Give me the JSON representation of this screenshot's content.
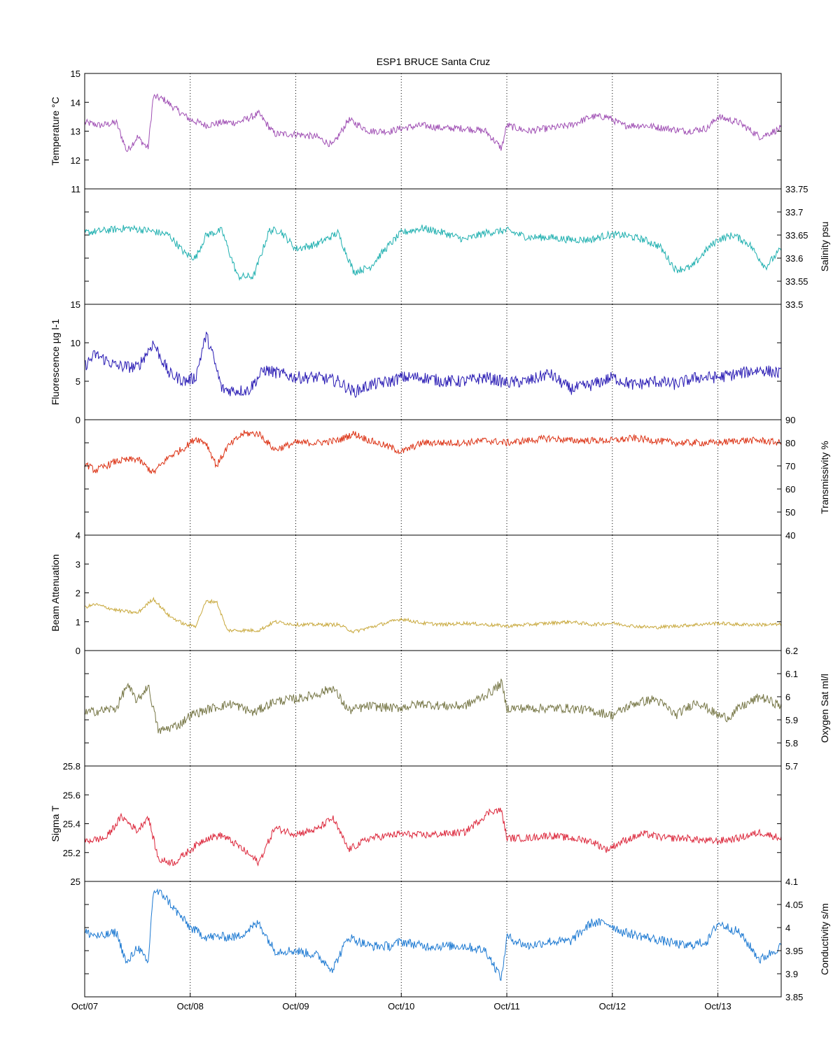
{
  "title": "ESP1 BRUCE Santa Cruz",
  "x_axis": {
    "tick_labels": [
      "Oct/07",
      "Oct/08",
      "Oct/09",
      "Oct/10",
      "Oct/11",
      "Oct/12",
      "Oct/13"
    ],
    "range_days": [
      7.0,
      13.6
    ]
  },
  "chart_data": [
    {
      "type": "line",
      "name": "temperature",
      "ylabel": "Temperature °C",
      "axis_side": "left",
      "ylim": [
        11,
        15
      ],
      "yticks": [
        11,
        12,
        13,
        14,
        15
      ],
      "color": "#a050b4",
      "x": [
        7.0,
        7.15,
        7.3,
        7.4,
        7.5,
        7.6,
        7.65,
        7.75,
        7.85,
        8.0,
        8.15,
        8.3,
        8.45,
        8.65,
        8.8,
        9.0,
        9.2,
        9.35,
        9.5,
        9.7,
        9.9,
        10.0,
        10.2,
        10.4,
        10.6,
        10.8,
        10.95,
        11.0,
        11.2,
        11.4,
        11.6,
        11.8,
        11.95,
        12.1,
        12.3,
        12.5,
        12.7,
        12.9,
        13.0,
        13.2,
        13.4,
        13.6
      ],
      "values": [
        13.3,
        13.2,
        13.3,
        12.3,
        12.8,
        12.4,
        14.2,
        14.1,
        13.8,
        13.4,
        13.2,
        13.3,
        13.3,
        13.6,
        12.9,
        12.9,
        12.8,
        12.5,
        13.4,
        13.0,
        13.0,
        13.1,
        13.2,
        13.1,
        13.1,
        13.0,
        12.4,
        13.2,
        13.0,
        13.1,
        13.2,
        13.5,
        13.5,
        13.2,
        13.2,
        13.1,
        13.0,
        13.1,
        13.5,
        13.3,
        12.8,
        13.1
      ],
      "noise": 0.12
    },
    {
      "type": "line",
      "name": "salinity",
      "ylabel": "Salinity psu",
      "axis_side": "right",
      "ylim": [
        33.5,
        33.75
      ],
      "yticks": [
        33.5,
        33.55,
        33.6,
        33.65,
        33.7,
        33.75
      ],
      "color": "#20b0b0",
      "x": [
        7.0,
        7.2,
        7.4,
        7.6,
        7.8,
        7.95,
        8.05,
        8.15,
        8.3,
        8.45,
        8.6,
        8.75,
        8.85,
        9.0,
        9.2,
        9.4,
        9.55,
        9.7,
        9.85,
        10.0,
        10.2,
        10.4,
        10.6,
        10.8,
        11.0,
        11.2,
        11.4,
        11.6,
        11.8,
        11.95,
        12.1,
        12.3,
        12.45,
        12.6,
        12.75,
        12.9,
        13.0,
        13.15,
        13.3,
        13.45,
        13.6
      ],
      "values": [
        33.655,
        33.66,
        33.665,
        33.66,
        33.65,
        33.61,
        33.6,
        33.65,
        33.66,
        33.56,
        33.56,
        33.66,
        33.66,
        33.62,
        33.63,
        33.655,
        33.57,
        33.58,
        33.62,
        33.655,
        33.665,
        33.655,
        33.64,
        33.655,
        33.66,
        33.645,
        33.645,
        33.64,
        33.64,
        33.65,
        33.65,
        33.64,
        33.625,
        33.575,
        33.58,
        33.62,
        33.64,
        33.65,
        33.63,
        33.58,
        33.62
      ],
      "noise": 0.008
    },
    {
      "type": "line",
      "name": "fluorescence",
      "ylabel": "Fluorescence µg l-1",
      "axis_side": "left",
      "ylim": [
        0,
        15
      ],
      "yticks": [
        0,
        5,
        10,
        15
      ],
      "color": "#2a1cb4",
      "x": [
        7.0,
        7.1,
        7.3,
        7.5,
        7.65,
        7.8,
        7.95,
        8.05,
        8.15,
        8.2,
        8.3,
        8.4,
        8.55,
        8.7,
        8.85,
        9.0,
        9.2,
        9.4,
        9.55,
        9.7,
        9.9,
        10.0,
        10.2,
        10.4,
        10.6,
        10.8,
        11.0,
        11.2,
        11.4,
        11.6,
        11.8,
        12.0,
        12.2,
        12.4,
        12.6,
        12.8,
        13.0,
        13.2,
        13.4,
        13.6
      ],
      "values": [
        7.0,
        8.5,
        7.0,
        6.8,
        10.0,
        6.0,
        5.0,
        5.5,
        11.0,
        9.0,
        4.0,
        3.8,
        3.8,
        6.5,
        6.0,
        5.5,
        5.5,
        5.0,
        3.6,
        4.5,
        5.0,
        5.5,
        5.5,
        5.0,
        5.0,
        5.5,
        4.8,
        5.0,
        6.0,
        4.0,
        4.5,
        5.5,
        4.5,
        5.0,
        4.6,
        5.5,
        5.5,
        6.0,
        6.5,
        6.0
      ],
      "noise": 0.8
    },
    {
      "type": "line",
      "name": "transmissivity",
      "ylabel": "Transmissivity %",
      "axis_side": "right",
      "ylim": [
        40,
        90
      ],
      "yticks": [
        40,
        50,
        60,
        70,
        80,
        90
      ],
      "color": "#dc3214",
      "x": [
        7.0,
        7.1,
        7.3,
        7.5,
        7.65,
        7.8,
        7.95,
        8.05,
        8.15,
        8.25,
        8.35,
        8.5,
        8.65,
        8.8,
        9.0,
        9.2,
        9.4,
        9.55,
        9.7,
        9.9,
        10.0,
        10.2,
        10.4,
        10.6,
        10.8,
        11.0,
        11.2,
        11.4,
        11.6,
        11.8,
        12.0,
        12.2,
        12.4,
        12.6,
        12.8,
        13.0,
        13.2,
        13.4,
        13.6
      ],
      "values": [
        71,
        68,
        72,
        73,
        67,
        74,
        78,
        82,
        80,
        70,
        78,
        84,
        84,
        77,
        80,
        80,
        81,
        84,
        81,
        78,
        76,
        80,
        80,
        80,
        81,
        80,
        81,
        82,
        81,
        81,
        81,
        82,
        81,
        80,
        80,
        80,
        81,
        81,
        80
      ],
      "noise": 1.5
    },
    {
      "type": "line",
      "name": "beam_attenuation",
      "ylabel": "Beam Attenuation",
      "axis_side": "left",
      "ylim": [
        0,
        4
      ],
      "yticks": [
        0,
        1,
        2,
        3,
        4
      ],
      "color": "#c8a83c",
      "x": [
        7.0,
        7.1,
        7.3,
        7.5,
        7.65,
        7.8,
        7.95,
        8.05,
        8.15,
        8.25,
        8.35,
        8.5,
        8.65,
        8.8,
        9.0,
        9.2,
        9.4,
        9.55,
        9.7,
        9.9,
        10.0,
        10.2,
        10.4,
        10.6,
        10.8,
        11.0,
        11.2,
        11.4,
        11.6,
        11.8,
        12.0,
        12.2,
        12.4,
        12.6,
        12.8,
        13.0,
        13.2,
        13.4,
        13.6
      ],
      "values": [
        1.5,
        1.6,
        1.4,
        1.3,
        1.8,
        1.2,
        0.9,
        0.85,
        1.7,
        1.7,
        0.7,
        0.7,
        0.7,
        1.0,
        0.9,
        0.9,
        0.9,
        0.65,
        0.8,
        1.0,
        1.1,
        0.95,
        0.9,
        0.95,
        0.9,
        0.85,
        0.9,
        0.95,
        1.0,
        0.9,
        0.95,
        0.85,
        0.8,
        0.85,
        0.9,
        0.95,
        0.9,
        0.9,
        0.9
      ],
      "noise": 0.06
    },
    {
      "type": "line",
      "name": "oxygen_sat",
      "ylabel": "Oxygen Sat ml/l",
      "axis_side": "right",
      "ylim": [
        5.7,
        6.2
      ],
      "yticks": [
        5.7,
        5.8,
        5.9,
        6.0,
        6.1,
        6.2
      ],
      "color": "#787848",
      "x": [
        7.0,
        7.15,
        7.3,
        7.4,
        7.5,
        7.6,
        7.7,
        7.9,
        8.0,
        8.2,
        8.4,
        8.6,
        8.8,
        9.0,
        9.2,
        9.35,
        9.5,
        9.7,
        9.95,
        10.2,
        10.4,
        10.6,
        10.85,
        10.95,
        11.0,
        11.2,
        11.4,
        11.6,
        11.8,
        12.0,
        12.2,
        12.4,
        12.5,
        12.6,
        12.8,
        13.0,
        13.1,
        13.2,
        13.4,
        13.6
      ],
      "values": [
        5.93,
        5.94,
        5.95,
        6.05,
        5.98,
        6.05,
        5.85,
        5.88,
        5.92,
        5.95,
        5.97,
        5.93,
        5.98,
        5.99,
        6.01,
        6.04,
        5.94,
        5.96,
        5.95,
        5.97,
        5.96,
        5.96,
        6.02,
        6.06,
        5.95,
        5.95,
        5.95,
        5.95,
        5.94,
        5.92,
        5.97,
        5.99,
        5.96,
        5.92,
        5.98,
        5.92,
        5.91,
        5.95,
        6.0,
        5.96
      ],
      "noise": 0.02
    },
    {
      "type": "line",
      "name": "sigma_t",
      "ylabel": "Sigma T",
      "axis_side": "left",
      "ylim": [
        25.0,
        25.8
      ],
      "yticks": [
        25.0,
        25.2,
        25.4,
        25.6,
        25.8
      ],
      "color": "#dc283c",
      "x": [
        7.0,
        7.2,
        7.35,
        7.5,
        7.6,
        7.7,
        7.85,
        8.0,
        8.15,
        8.3,
        8.45,
        8.65,
        8.8,
        9.0,
        9.2,
        9.35,
        9.5,
        9.7,
        9.9,
        10.0,
        10.2,
        10.4,
        10.6,
        10.85,
        10.95,
        11.0,
        11.2,
        11.4,
        11.6,
        11.8,
        11.95,
        12.1,
        12.3,
        12.5,
        12.7,
        12.9,
        13.0,
        13.2,
        13.4,
        13.6
      ],
      "values": [
        25.28,
        25.3,
        25.45,
        25.35,
        25.45,
        25.15,
        25.13,
        25.22,
        25.3,
        25.32,
        25.25,
        25.13,
        25.37,
        25.33,
        25.36,
        25.44,
        25.22,
        25.3,
        25.32,
        25.33,
        25.32,
        25.33,
        25.34,
        25.49,
        25.49,
        25.3,
        25.3,
        25.32,
        25.3,
        25.28,
        25.22,
        25.28,
        25.33,
        25.3,
        25.3,
        25.28,
        25.28,
        25.3,
        25.34,
        25.3
      ],
      "noise": 0.025
    },
    {
      "type": "line",
      "name": "conductivity",
      "ylabel": "Conductivity s/m",
      "axis_side": "right",
      "ylim": [
        3.85,
        4.1
      ],
      "yticks": [
        3.85,
        3.9,
        3.95,
        4.0,
        4.05,
        4.1
      ],
      "color": "#1e7ad2",
      "x": [
        7.0,
        7.15,
        7.3,
        7.4,
        7.5,
        7.6,
        7.65,
        7.75,
        7.85,
        8.0,
        8.15,
        8.3,
        8.45,
        8.65,
        8.8,
        9.0,
        9.2,
        9.35,
        9.5,
        9.7,
        9.9,
        10.0,
        10.2,
        10.4,
        10.6,
        10.8,
        10.95,
        11.0,
        11.2,
        11.4,
        11.6,
        11.8,
        11.95,
        12.1,
        12.3,
        12.5,
        12.7,
        12.9,
        13.0,
        13.2,
        13.4,
        13.6
      ],
      "values": [
        3.99,
        3.98,
        3.99,
        3.92,
        3.96,
        3.92,
        4.08,
        4.07,
        4.04,
        4.0,
        3.98,
        3.98,
        3.98,
        4.01,
        3.95,
        3.95,
        3.94,
        3.91,
        3.98,
        3.96,
        3.96,
        3.97,
        3.96,
        3.96,
        3.96,
        3.95,
        3.89,
        3.98,
        3.96,
        3.97,
        3.97,
        4.01,
        4.01,
        3.99,
        3.98,
        3.97,
        3.96,
        3.97,
        4.01,
        3.99,
        3.93,
        3.96
      ],
      "noise": 0.01
    }
  ]
}
